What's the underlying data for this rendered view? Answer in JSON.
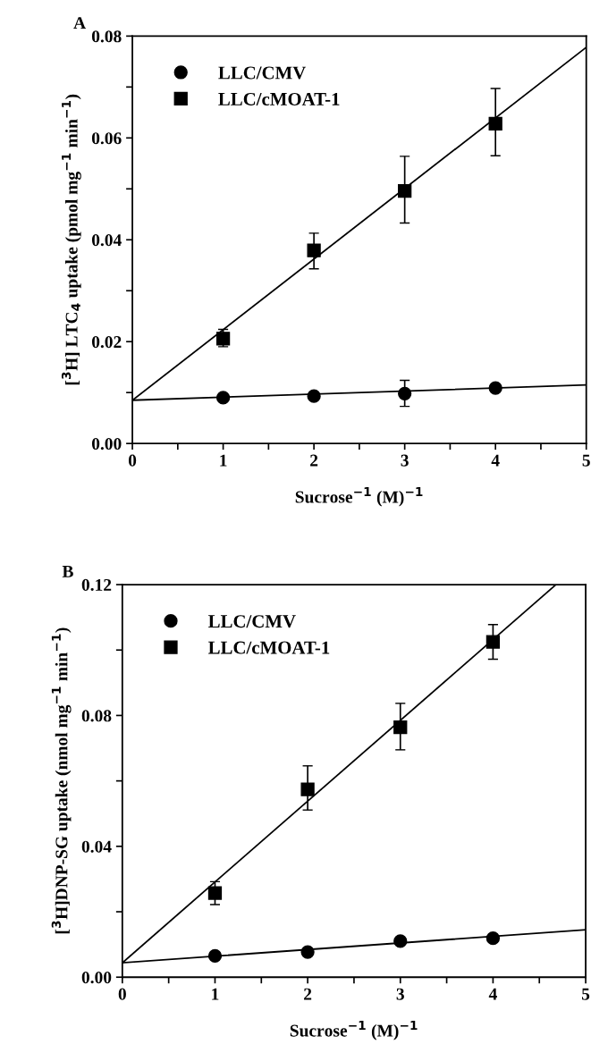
{
  "chart_data": [
    {
      "type": "scatter",
      "title": "A",
      "xlabel": "Sucrose$^{−1}$ (M)$^{−1}$",
      "ylabel": "[$^{3}$H] LTC$_{4}$ uptake (pmol mg$^{−1}$ min$^{−1}$)",
      "xlim": [
        0,
        5
      ],
      "ylim": [
        0,
        0.08
      ],
      "xticks": [
        0,
        {
          "value": 0.5,
          "label": null
        },
        1,
        {
          "value": 1.5,
          "label": null
        },
        2,
        {
          "value": 2.5,
          "label": null
        },
        3,
        {
          "value": 3.5,
          "label": null
        },
        4,
        {
          "value": 4.5,
          "label": null
        },
        5
      ],
      "yticks": [
        {
          "value": 0,
          "label": "0.00"
        },
        {
          "value": 0.01,
          "label": null
        },
        0.02,
        {
          "value": 0.03,
          "label": null
        },
        0.04,
        {
          "value": 0.05,
          "label": null
        },
        0.06,
        {
          "value": 0.07,
          "label": null
        },
        0.08
      ],
      "legend": "top left",
      "grid": false,
      "series": [
        {
          "name": "LLC/CMV",
          "color": "#000000",
          "marker": "circle",
          "x": [
            1,
            2,
            3,
            4
          ],
          "values": [
            0.009,
            0.0093,
            0.0098,
            0.0109
          ],
          "errors": [
            null,
            null,
            [
              0.0073,
              0.0124
            ],
            null
          ]
        },
        {
          "name": "LLC/cMOAT-1",
          "color": "#000000",
          "marker": "square",
          "x": [
            1,
            2,
            3,
            4
          ],
          "values": [
            0.0206,
            0.0379,
            0.0496,
            0.0628
          ],
          "errors": [
            [
              0.019,
              0.0224
            ],
            [
              0.0343,
              0.0413
            ],
            [
              0.0433,
              0.0564
            ],
            [
              0.0565,
              0.0697
            ]
          ]
        },
        {
          "type": "line",
          "color": "#000000",
          "marker": "none",
          "line_style": "solid",
          "x": [
            0,
            5
          ],
          "values": [
            0.0085,
            0.0115
          ]
        },
        {
          "type": "line",
          "color": "#000000",
          "marker": "none",
          "line_style": "solid",
          "x": [
            0,
            5
          ],
          "values": [
            0.0085,
            0.0778
          ]
        }
      ]
    },
    {
      "type": "scatter",
      "title": "B",
      "xlabel": "Sucrose$^{−1}$ (M)$^{−1}$",
      "ylabel": "[$^{3}$H]DNP-SG uptake (nmol mg$^{−1}$ min$^{−1}$)",
      "xlim": [
        0,
        5
      ],
      "ylim": [
        0,
        0.12
      ],
      "xticks": [
        0,
        {
          "value": 0.5,
          "label": null
        },
        1,
        {
          "value": 1.5,
          "label": null
        },
        2,
        {
          "value": 2.5,
          "label": null
        },
        3,
        {
          "value": 3.5,
          "label": null
        },
        4,
        {
          "value": 4.5,
          "label": null
        },
        5
      ],
      "yticks": [
        {
          "value": 0,
          "label": "0.00"
        },
        {
          "value": 0.02,
          "label": null
        },
        0.04,
        {
          "value": 0.06,
          "label": null
        },
        0.08,
        {
          "value": 0.1,
          "label": null
        },
        0.12
      ],
      "legend": "top left",
      "grid": false,
      "series": [
        {
          "name": "LLC/CMV",
          "color": "#000000",
          "marker": "circle",
          "x": [
            1,
            2,
            3,
            4
          ],
          "values": [
            0.0065,
            0.0077,
            0.011,
            0.0119
          ]
        },
        {
          "name": "LLC/cMOAT-1",
          "color": "#000000",
          "marker": "square",
          "x": [
            1,
            2,
            3,
            4
          ],
          "values": [
            0.0257,
            0.0574,
            0.0764,
            0.1025
          ],
          "errors": [
            [
              0.0222,
              0.0292
            ],
            [
              0.0511,
              0.0646
            ],
            [
              0.0695,
              0.0837
            ],
            [
              0.0972,
              0.1078
            ]
          ]
        },
        {
          "type": "line",
          "color": "#000000",
          "marker": "none",
          "line_style": "solid",
          "x": [
            0,
            5
          ],
          "values": [
            0.0044,
            0.0145
          ]
        },
        {
          "type": "line",
          "color": "#000000",
          "marker": "none",
          "line_style": "solid",
          "x": [
            0,
            4.68
          ],
          "values": [
            0.0044,
            0.12
          ]
        }
      ]
    }
  ]
}
